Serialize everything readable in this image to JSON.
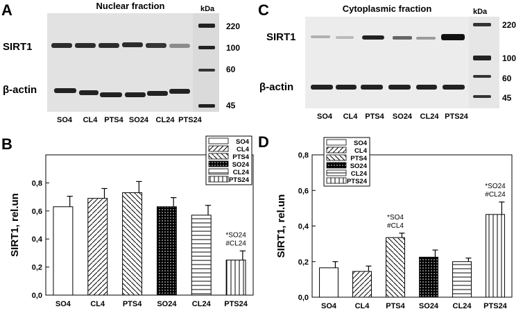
{
  "colors": {
    "blot_bg": "#d8d8d8",
    "band": "#222222",
    "bar_stroke": "#000000"
  },
  "panel_a": {
    "letter": "A",
    "title": "Nuclear fraction",
    "kda_label": "kDa",
    "row_labels": [
      "SIRT1",
      "β-actin"
    ],
    "lane_labels": [
      "SO4",
      "CL4",
      "PTS4",
      "SO24",
      "CL24",
      "PTS24"
    ],
    "marker_labels": [
      "220",
      "100",
      "60",
      "45"
    ]
  },
  "panel_c": {
    "letter": "C",
    "title": "Cytoplasmic fraction",
    "kda_label": "kDa",
    "row_labels": [
      "SIRT1",
      "β-actin"
    ],
    "lane_labels": [
      "SO4",
      "CL4",
      "PTS4",
      "SO24",
      "CL24",
      "PTS24"
    ],
    "marker_labels": [
      "220",
      "100",
      "60",
      "45"
    ]
  },
  "chart_data": [
    {
      "type": "bar",
      "panel": "B",
      "categories": [
        "SO4",
        "CL4",
        "PTS4",
        "SO24",
        "CL24",
        "PTS24"
      ],
      "values": [
        0.63,
        0.69,
        0.73,
        0.63,
        0.57,
        0.25
      ],
      "errors": [
        0.075,
        0.07,
        0.08,
        0.065,
        0.07,
        0.065
      ],
      "patterns": [
        "white",
        "diag-right",
        "diag-left",
        "dots",
        "horizontal",
        "vertical"
      ],
      "ylabel": "SIRT1, rel.un",
      "ylim": [
        0,
        1.0
      ],
      "yticks": [
        "0,0",
        "0,2",
        "0,4",
        "0,6",
        "0,8"
      ],
      "legend": [
        "SO4",
        "CL4",
        "PTS4",
        "SO24",
        "CL24",
        "PTS24"
      ],
      "legend_placement": "top-right",
      "annotations": [
        {
          "category": "PTS24",
          "lines": [
            "*SO24",
            "#CL24"
          ]
        }
      ]
    },
    {
      "type": "bar",
      "panel": "D",
      "categories": [
        "SO4",
        "CL4",
        "PTS4",
        "SO24",
        "CL24",
        "PTS24"
      ],
      "values": [
        0.165,
        0.145,
        0.335,
        0.225,
        0.2,
        0.465
      ],
      "errors": [
        0.035,
        0.03,
        0.025,
        0.04,
        0.02,
        0.07
      ],
      "patterns": [
        "white",
        "diag-right",
        "diag-left",
        "dots",
        "horizontal",
        "vertical"
      ],
      "ylabel": "SIRT1, rel.un",
      "ylim": [
        0,
        0.8
      ],
      "yticks": [
        "0,0",
        "0,2",
        "0,4",
        "0,6",
        "0,8"
      ],
      "legend": [
        "SO4",
        "CL4",
        "PTS4",
        "SO24",
        "CL24",
        "PTS24"
      ],
      "legend_placement": "top-left",
      "annotations": [
        {
          "category": "PTS4",
          "lines": [
            "*SO4",
            "#CL4"
          ]
        },
        {
          "category": "PTS24",
          "lines": [
            "*SO24",
            "#CL24"
          ]
        }
      ]
    }
  ]
}
